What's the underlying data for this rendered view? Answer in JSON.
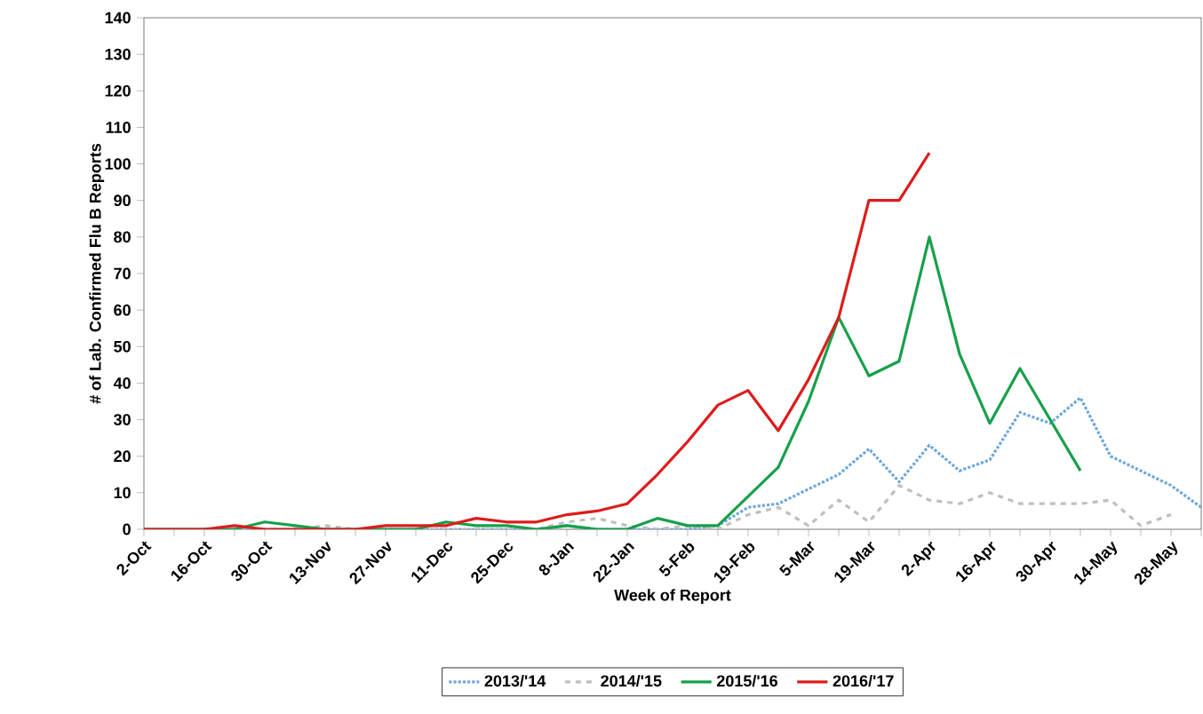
{
  "chart_data": {
    "type": "line",
    "xlabel": "Week of Report",
    "ylabel": "# of Lab. Confirmed Flu B Reports",
    "categories": [
      "2-Oct",
      null,
      "16-Oct",
      null,
      "30-Oct",
      null,
      "13-Nov",
      null,
      "27-Nov",
      null,
      "11-Dec",
      null,
      "25-Dec",
      null,
      "8-Jan",
      null,
      "22-Jan",
      null,
      "5-Feb",
      null,
      "19-Feb",
      null,
      "5-Mar",
      null,
      "19-Mar",
      null,
      "2-Apr",
      null,
      "16-Apr",
      null,
      "30-Apr",
      null,
      "14-May",
      null,
      "28-May",
      null
    ],
    "ylim": [
      0,
      140
    ],
    "yticks": [
      0,
      10,
      20,
      30,
      40,
      50,
      60,
      70,
      80,
      90,
      100,
      110,
      120,
      130,
      140
    ],
    "grid": false,
    "legend": "bottom",
    "series": [
      {
        "name": "2013/'14",
        "color": "#6fa8dc",
        "line_style": "dotted",
        "values": [
          null,
          null,
          0,
          0,
          0,
          0,
          0,
          0,
          0,
          0,
          0,
          0,
          0,
          0,
          1,
          0,
          0,
          0,
          0,
          1,
          6,
          7,
          11,
          15,
          22,
          13,
          23,
          16,
          19,
          32,
          29,
          36,
          20,
          16,
          12,
          6
        ]
      },
      {
        "name": "2014/'15",
        "color": "#bfbfbf",
        "line_style": "dashed",
        "values": [
          0,
          0,
          0,
          0,
          0,
          0,
          1,
          0,
          0,
          0,
          0,
          0,
          0,
          0,
          2,
          3,
          1,
          0,
          1,
          0,
          4,
          6,
          1,
          8,
          2,
          12,
          8,
          7,
          10,
          7,
          7,
          7,
          8,
          1,
          4,
          null
        ]
      },
      {
        "name": "2015/'16",
        "color": "#17a04a",
        "line_style": "solid",
        "values": [
          0,
          0,
          0,
          0,
          2,
          1,
          0,
          0,
          0,
          0,
          2,
          1,
          1,
          0,
          1,
          0,
          0,
          3,
          1,
          1,
          9,
          17,
          35,
          58,
          42,
          46,
          80,
          48,
          29,
          44,
          30,
          16,
          null,
          null,
          null,
          null
        ]
      },
      {
        "name": "2016/'17",
        "color": "#dd1c1c",
        "line_style": "solid",
        "values": [
          0,
          0,
          0,
          1,
          0,
          0,
          0,
          0,
          1,
          1,
          1,
          3,
          2,
          2,
          4,
          5,
          7,
          15,
          24,
          34,
          38,
          27,
          41,
          58,
          90,
          90,
          103,
          null,
          null,
          null,
          null,
          null,
          null,
          null,
          null,
          null
        ]
      }
    ]
  }
}
